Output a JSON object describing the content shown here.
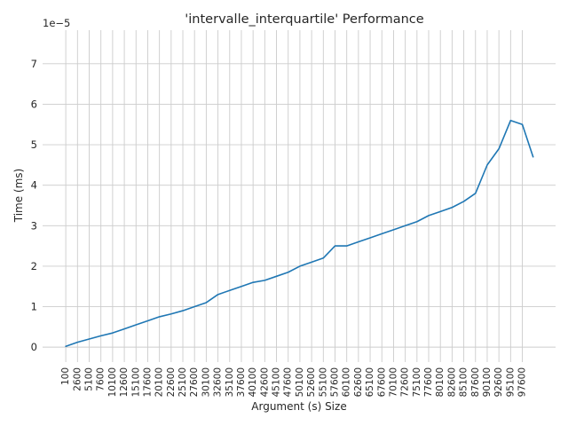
{
  "chart_data": {
    "type": "line",
    "title": "'intervalle_interquartile' Performance",
    "xlabel": "Argument (s) Size",
    "ylabel": "Time (ms)",
    "y_scale_label": "1e−5",
    "y_multiplier": 1e-05,
    "ylim": [
      -0.37,
      7.83
    ],
    "yticks": [
      0,
      1,
      2,
      3,
      4,
      5,
      6,
      7
    ],
    "xlim": [
      -4850,
      104700
    ],
    "grid": true,
    "legend": "none",
    "colors": {
      "line": "#1f77b4",
      "grid": "#cccccc",
      "text": "#262626"
    },
    "x_tick_values": [
      100,
      2600,
      5100,
      7600,
      10100,
      12600,
      15100,
      17600,
      20100,
      22600,
      25100,
      27600,
      30100,
      32600,
      35100,
      37600,
      40100,
      42600,
      45100,
      47600,
      50100,
      52600,
      55100,
      57600,
      60100,
      62600,
      65100,
      67600,
      70100,
      72600,
      75100,
      77600,
      80100,
      82600,
      85100,
      87600,
      90100,
      92600,
      95100,
      97600
    ],
    "x_tick_labels": [
      "100",
      "2600",
      "5100",
      "7600",
      "10100",
      "12600",
      "15100",
      "17600",
      "20100",
      "22600",
      "25100",
      "27600",
      "30100",
      "32600",
      "35100",
      "37600",
      "40100",
      "42600",
      "45100",
      "47600",
      "50100",
      "52600",
      "55100",
      "57600",
      "60100",
      "62600",
      "65100",
      "67600",
      "70100",
      "72600",
      "75100",
      "77600",
      "80100",
      "82600",
      "85100",
      "87600",
      "90100",
      "92600",
      "95100",
      "97600"
    ],
    "series": [
      {
        "x": [
          100,
          2600,
          5100,
          7600,
          10100,
          12600,
          15100,
          17600,
          20100,
          22600,
          25100,
          27600,
          30100,
          32600,
          35100,
          37600,
          40100,
          42600,
          45100,
          47600,
          50100,
          52600,
          55100,
          57600,
          60100,
          62600,
          65100,
          67600,
          70100,
          72600,
          75100,
          77600,
          80100,
          82600,
          85100,
          87600,
          90100,
          92600,
          95100,
          97600,
          99900
        ],
        "values": [
          0.02,
          0.12,
          0.2,
          0.28,
          0.35,
          0.45,
          0.55,
          0.65,
          0.75,
          0.82,
          0.9,
          1.0,
          1.1,
          1.3,
          1.4,
          1.5,
          1.6,
          1.65,
          1.75,
          1.85,
          2.0,
          2.1,
          2.2,
          2.5,
          2.5,
          2.6,
          2.7,
          2.8,
          2.9,
          3.0,
          3.1,
          3.25,
          3.35,
          3.45,
          3.6,
          3.8,
          4.5,
          4.9,
          5.6,
          5.5,
          4.7
        ]
      }
    ]
  }
}
